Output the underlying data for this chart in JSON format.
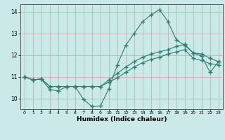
{
  "xlabel": "Humidex (Indice chaleur)",
  "bg_color": "#cce9e9",
  "line_color": "#2e7d6e",
  "xlim": [
    -0.5,
    23.5
  ],
  "ylim": [
    9.5,
    14.35
  ],
  "xticks": [
    0,
    1,
    2,
    3,
    4,
    5,
    6,
    7,
    8,
    9,
    10,
    11,
    12,
    13,
    14,
    15,
    16,
    17,
    18,
    19,
    20,
    21,
    22,
    23
  ],
  "yticks": [
    10,
    11,
    12,
    13,
    14
  ],
  "line1_x": [
    0,
    1,
    2,
    3,
    4,
    5,
    6,
    7,
    8,
    9,
    10,
    11,
    12,
    13,
    14,
    15,
    16,
    17,
    18,
    19,
    20,
    21,
    22,
    23
  ],
  "line1_y": [
    11.0,
    10.85,
    10.9,
    10.4,
    10.35,
    10.55,
    10.55,
    9.95,
    9.62,
    9.65,
    10.45,
    11.55,
    12.45,
    13.0,
    13.55,
    13.85,
    14.1,
    13.55,
    12.7,
    12.45,
    12.1,
    11.95,
    11.2,
    11.7
  ],
  "line2_x": [
    0,
    1,
    2,
    3,
    4,
    5,
    6,
    7,
    8,
    9,
    10,
    11,
    12,
    13,
    14,
    15,
    16,
    17,
    18,
    19,
    20,
    21,
    22,
    23
  ],
  "line2_y": [
    11.0,
    10.85,
    10.9,
    10.55,
    10.55,
    10.55,
    10.55,
    10.55,
    10.55,
    10.55,
    10.85,
    11.15,
    11.45,
    11.7,
    11.9,
    12.05,
    12.15,
    12.25,
    12.4,
    12.5,
    12.1,
    12.05,
    11.85,
    11.7
  ],
  "line3_x": [
    0,
    1,
    2,
    3,
    4,
    5,
    6,
    7,
    8,
    9,
    10,
    11,
    12,
    13,
    14,
    15,
    16,
    17,
    18,
    19,
    20,
    21,
    22,
    23
  ],
  "line3_y": [
    11.0,
    10.85,
    10.9,
    10.55,
    10.55,
    10.55,
    10.55,
    10.55,
    10.55,
    10.55,
    10.75,
    10.95,
    11.2,
    11.45,
    11.65,
    11.8,
    11.9,
    12.05,
    12.15,
    12.25,
    11.85,
    11.75,
    11.6,
    11.55
  ]
}
